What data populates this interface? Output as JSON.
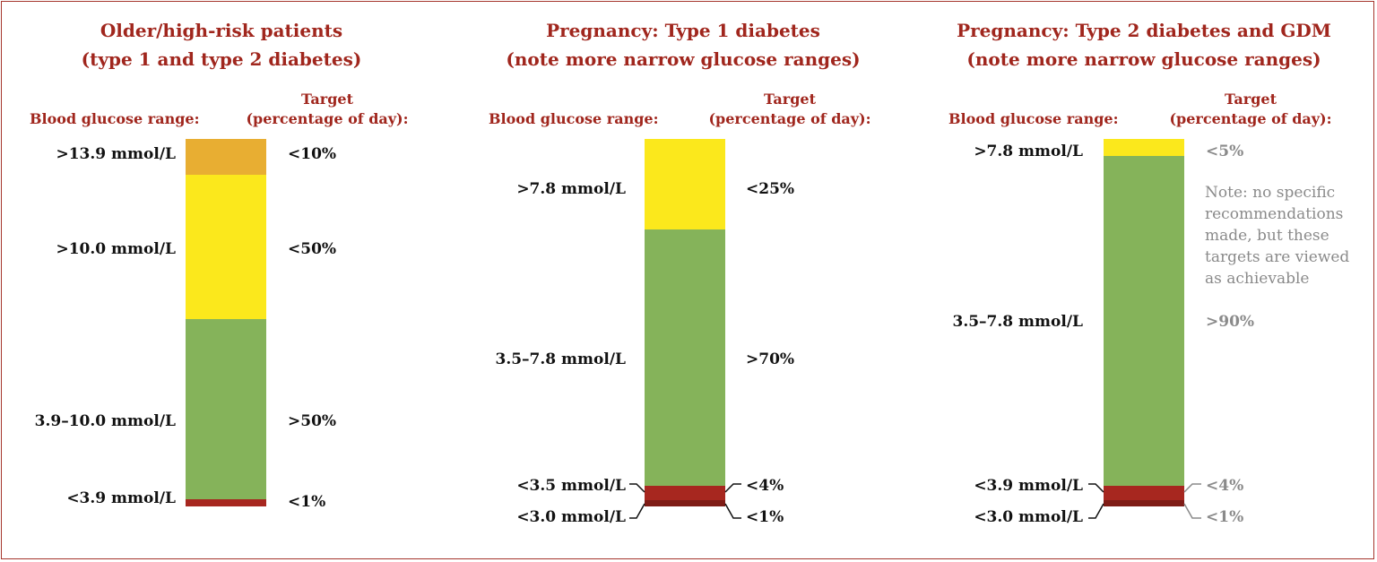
{
  "colors": {
    "orange": "#e8ae32",
    "yellow": "#fbe81c",
    "green": "#85b35a",
    "red": "#a7271f",
    "title": "#a0261d",
    "gray": "#8a8a8a"
  },
  "panels": [
    {
      "title_line1": "Older/high-risk patients",
      "title_line2": "(type 1 and type 2 diabetes)",
      "range_header": "Blood glucose range:",
      "target_header_line1": "Target",
      "target_header_line2": "(percentage of day):",
      "rows": [
        {
          "range": ">13.9 mmol/L",
          "target": "<10%"
        },
        {
          "range": ">10.0 mmol/L",
          "target": "<50%"
        },
        {
          "range": "3.9–10.0 mmol/L",
          "target": ">50%"
        },
        {
          "range": "<3.9 mmol/L",
          "target": "<1%"
        }
      ]
    },
    {
      "title_line1": "Pregnancy: Type 1 diabetes",
      "title_line2": "(note more narrow glucose ranges)",
      "range_header": "Blood glucose range:",
      "target_header_line1": "Target",
      "target_header_line2": "(percentage of day):",
      "rows": [
        {
          "range": ">7.8 mmol/L",
          "target": "<25%"
        },
        {
          "range": "3.5–7.8 mmol/L",
          "target": ">70%"
        },
        {
          "range": "<3.5 mmol/L",
          "target": "<4%"
        },
        {
          "range": "<3.0 mmol/L",
          "target": "<1%"
        }
      ]
    },
    {
      "title_line1": "Pregnancy: Type 2 diabetes and GDM",
      "title_line2": "(note more narrow glucose ranges)",
      "range_header": "Blood glucose range:",
      "target_header_line1": "Target",
      "target_header_line2": "(percentage of day):",
      "note": [
        "Note: no specific",
        "recommendations",
        "made, but these",
        "targets are viewed",
        "as achievable"
      ],
      "rows": [
        {
          "range": ">7.8 mmol/L",
          "target": "<5%"
        },
        {
          "range": "3.5–7.8 mmol/L",
          "target": ">90%"
        },
        {
          "range": "<3.9 mmol/L",
          "target": "<4%"
        },
        {
          "range": "<3.0 mmol/L",
          "target": "<1%"
        }
      ]
    }
  ]
}
